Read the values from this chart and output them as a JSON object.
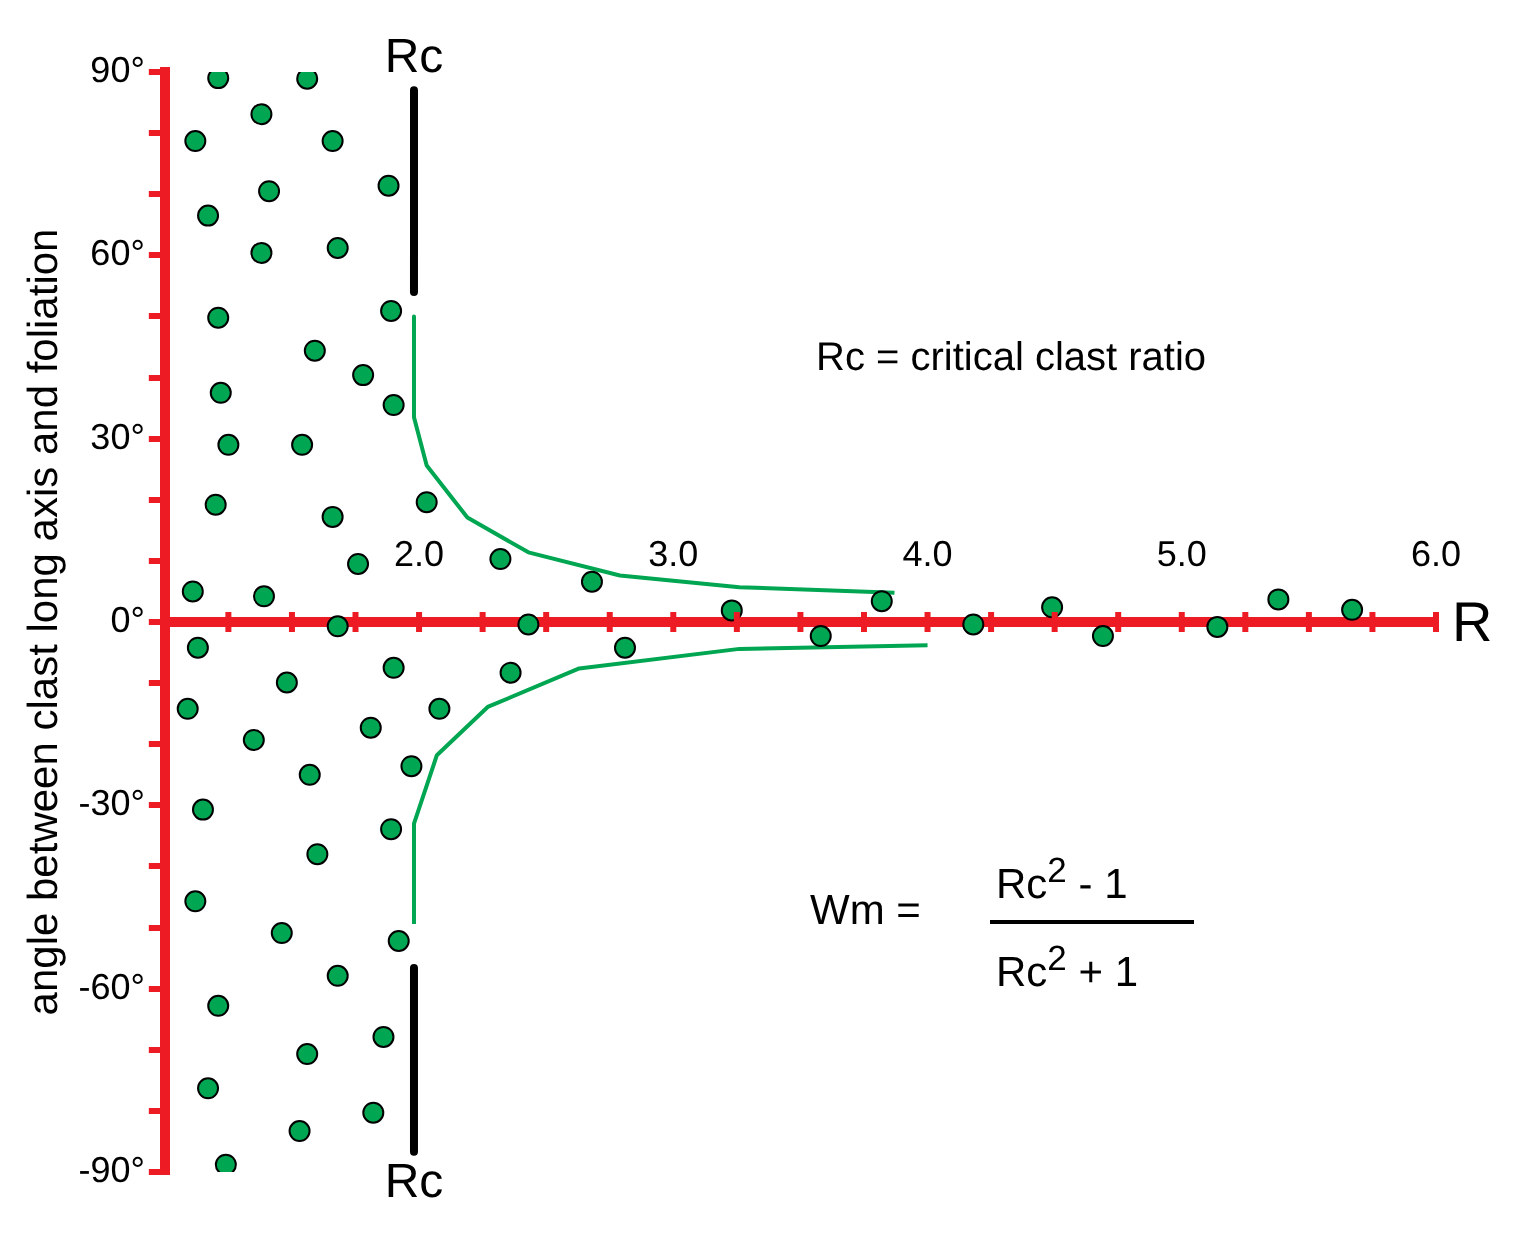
{
  "chart_data": {
    "type": "scatter",
    "ylabel": "angle between clast long axis and foliation",
    "xlabel": "R",
    "xlim": [
      1,
      6
    ],
    "ylim": [
      -90,
      90
    ],
    "xticks": [
      {
        "value": 1,
        "label": null
      },
      {
        "value": 1.25,
        "label": null
      },
      {
        "value": 1.5,
        "label": null
      },
      {
        "value": 1.75,
        "label": null
      },
      {
        "value": 2,
        "label": "2.0"
      },
      {
        "value": 2.25,
        "label": null
      },
      {
        "value": 2.5,
        "label": null
      },
      {
        "value": 2.75,
        "label": null
      },
      {
        "value": 3,
        "label": "3.0"
      },
      {
        "value": 3.25,
        "label": null
      },
      {
        "value": 3.5,
        "label": null
      },
      {
        "value": 3.75,
        "label": null
      },
      {
        "value": 4,
        "label": "4.0"
      },
      {
        "value": 4.25,
        "label": null
      },
      {
        "value": 4.5,
        "label": null
      },
      {
        "value": 4.75,
        "label": null
      },
      {
        "value": 5,
        "label": "5.0"
      },
      {
        "value": 5.25,
        "label": null
      },
      {
        "value": 5.5,
        "label": null
      },
      {
        "value": 5.75,
        "label": null
      },
      {
        "value": 6,
        "label": "6.0"
      }
    ],
    "yticks": [
      {
        "value": -90,
        "label": "-90°"
      },
      {
        "value": -80,
        "label": null
      },
      {
        "value": -70,
        "label": null
      },
      {
        "value": -60,
        "label": "-60°"
      },
      {
        "value": -50,
        "label": null
      },
      {
        "value": -40,
        "label": null
      },
      {
        "value": -30,
        "label": "-30°"
      },
      {
        "value": -20,
        "label": null
      },
      {
        "value": -10,
        "label": null
      },
      {
        "value": 0,
        "label": "0°"
      },
      {
        "value": 10,
        "label": null
      },
      {
        "value": 20,
        "label": null
      },
      {
        "value": 30,
        "label": "30°"
      },
      {
        "value": 40,
        "label": null
      },
      {
        "value": 50,
        "label": null
      },
      {
        "value": 60,
        "label": "60°"
      },
      {
        "value": 70,
        "label": null
      },
      {
        "value": 80,
        "label": null
      },
      {
        "value": 90,
        "label": "90°"
      }
    ],
    "legend": false,
    "series": [
      {
        "type": "scatter",
        "color": "#00a651",
        "marker": "circle",
        "x": [
          1.21,
          1.56,
          1.38,
          1.12,
          1.66,
          1.41,
          1.88,
          1.17,
          1.38,
          1.68,
          1.21,
          1.89,
          1.59,
          1.78,
          1.22,
          1.9,
          1.25,
          1.54,
          1.2,
          1.66,
          2.03,
          1.76,
          2.32,
          1.11,
          1.39,
          2.68,
          3.23,
          3.82,
          3.58,
          4.18,
          4.49,
          4.69,
          5.14,
          5.38,
          5.67,
          1.68,
          2.43,
          1.13,
          1.9,
          1.48,
          2.36,
          2.81,
          1.09,
          2.08,
          1.81,
          1.35,
          1.97,
          1.57,
          1.15,
          1.89,
          1.6,
          1.12,
          1.46,
          1.92,
          1.68,
          1.21,
          1.86,
          1.56,
          1.17,
          1.82,
          1.53,
          1.24
        ],
        "values": [
          89,
          88.9,
          83.1,
          78.7,
          78.7,
          70.5,
          71.4,
          66.5,
          60.4,
          61.2,
          49.8,
          50.9,
          44.4,
          40.4,
          37.5,
          35.5,
          29,
          29,
          19.2,
          17.2,
          19.6,
          9.5,
          10.3,
          5,
          4.2,
          6.6,
          1.9,
          3.4,
          -2.3,
          -0.4,
          2.4,
          -2.3,
          -0.8,
          3.7,
          2,
          -0.7,
          -0.4,
          -4.2,
          -7.5,
          -9.9,
          -8.3,
          -4.2,
          -14.2,
          -14.2,
          -17.3,
          -19.3,
          -23.6,
          -25,
          -30.7,
          -33.9,
          -38,
          -45.7,
          -50.9,
          -52.2,
          -57.9,
          -62.8,
          -67.9,
          -70.7,
          -76.3,
          -80.3,
          -83.3,
          -88.8
        ]
      },
      {
        "type": "line",
        "color": "#00a651",
        "x": [
          1.98,
          1.98,
          2.03,
          2.19,
          2.43,
          2.79,
          3.26,
          3.87
        ],
        "values": [
          50,
          33.5,
          25.6,
          17.1,
          11.4,
          7.6,
          5.7,
          4.8
        ]
      },
      {
        "type": "line",
        "color": "#00a651",
        "x": [
          1.98,
          1.98,
          2.07,
          2.27,
          2.63,
          3.26,
          4.0
        ],
        "values": [
          -49.4,
          -33,
          -21.8,
          -13.9,
          -7.6,
          -4.4,
          -3.8
        ]
      },
      {
        "type": "line",
        "color": "#000000",
        "x": [
          1.98,
          1.98
        ],
        "values": [
          87,
          54
        ]
      },
      {
        "type": "line",
        "color": "#000000",
        "x": [
          1.98,
          1.98
        ],
        "values": [
          -56.6,
          -86.7
        ]
      }
    ],
    "annotations": [
      {
        "text": "Rc",
        "x": 1.98,
        "y": 87
      },
      {
        "text": "Rc",
        "x": 1.98,
        "y": -86.7
      },
      "Rc = critical clast ratio",
      "Wm =",
      "Rc$^{2}$ - 1",
      "Rc$^{2}$ + 1"
    ]
  }
}
